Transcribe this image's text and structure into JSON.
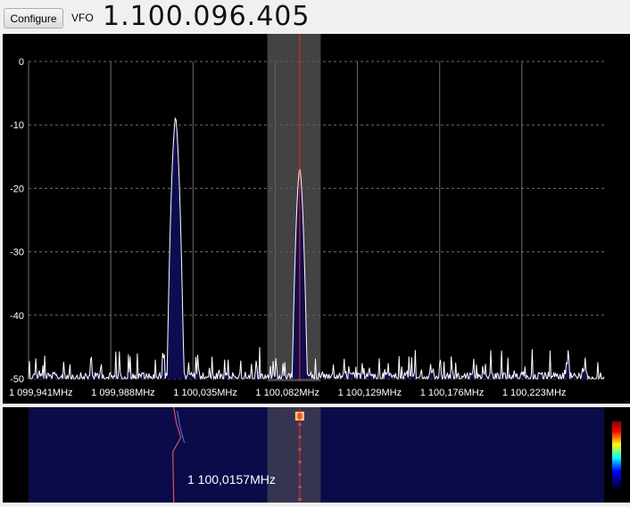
{
  "toolbar": {
    "configure_label": "Configure",
    "vfo_label": "VFO",
    "vfo_value": "1.100.096.405"
  },
  "colors": {
    "background": "#000000",
    "grid": "#6e6e6e",
    "trace": "#ffffff",
    "trace_fill": "#0c0c50",
    "cursor": "#ff2020",
    "filter_band": "#5a5a5a",
    "waterfall_bg": "#0b0b4a"
  },
  "spectrum": {
    "y_ticks": [
      "0",
      "-10",
      "-20",
      "-30",
      "-40",
      "-50"
    ],
    "x_ticks": [
      "1 099,941MHz",
      "1 099,988MHz",
      "1 100,035MHz",
      "1 100,082MHz",
      "1 100,129MHz",
      "1 100,176MHz",
      "1 100,223MHz"
    ]
  },
  "chart_data": {
    "type": "line",
    "x_unit": "MHz",
    "y_unit": "dB",
    "ylim": [
      -50,
      0
    ],
    "xlim": [
      1099.941,
      1100.27
    ],
    "grid": true,
    "cursor_frequency": 1100.096,
    "filter_band": [
      1100.0775,
      1100.108
    ],
    "peaks": [
      {
        "x": 1100.025,
        "y": -8.5
      },
      {
        "x": 1100.096,
        "y": -16.5
      }
    ],
    "noise_floor": -49
  },
  "waterfall": {
    "hover_frequency": "1 100,0157MHz"
  }
}
